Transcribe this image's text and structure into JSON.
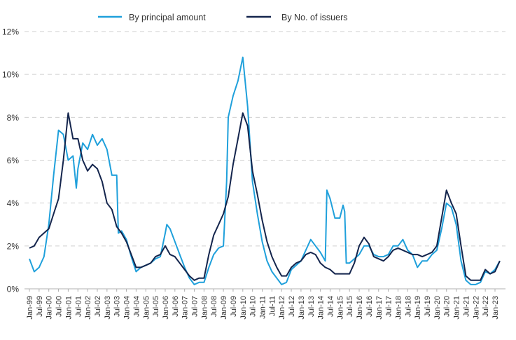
{
  "chart_data": {
    "type": "line",
    "title": "",
    "xlabel": "",
    "ylabel": "",
    "ylim": [
      0,
      12
    ],
    "y_ticks": [
      "0%",
      "2%",
      "4%",
      "6%",
      "8%",
      "10%",
      "12%"
    ],
    "x_ticks": [
      "Jan-99",
      "Jul-99",
      "Jan-00",
      "Jul-00",
      "Jan-01",
      "Jul-01",
      "Jan-02",
      "Jul-02",
      "Jan-03",
      "Jul-03",
      "Jan-04",
      "Jul-04",
      "Jan-05",
      "Jul-05",
      "Jan-06",
      "Jul-06",
      "Jan-07",
      "Jul-07",
      "Jan-08",
      "Jul-08",
      "Jan-09",
      "Jul-09",
      "Jan-10",
      "Jul-10",
      "Jan-11",
      "Jul-11",
      "Jan-12",
      "Jul-12",
      "Jan-13",
      "Jul-13",
      "Jan-14",
      "Jul-14",
      "Jan-15",
      "Jul-15",
      "Jan-16",
      "Jul-16",
      "Jan-17",
      "Jul-17",
      "Jan-18",
      "Jul-18",
      "Jan-19",
      "Jul-19",
      "Jan-20",
      "Jul-20",
      "Jan-21",
      "Jul-21",
      "Jan-22",
      "Jul-22",
      "Jan-23"
    ],
    "grid": "horizontal dashed",
    "legend_position": "top-center",
    "series": [
      {
        "name": "By principal amount",
        "color": "#1fa0db",
        "points": [
          [
            "1999-01",
            1.4
          ],
          [
            "1999-04",
            0.8
          ],
          [
            "1999-07",
            1.0
          ],
          [
            "1999-10",
            1.5
          ],
          [
            "2000-01",
            3.0
          ],
          [
            "2000-04",
            5.3
          ],
          [
            "2000-07",
            7.4
          ],
          [
            "2000-10",
            7.2
          ],
          [
            "2001-01",
            6.0
          ],
          [
            "2001-04",
            6.2
          ],
          [
            "2001-06",
            4.7
          ],
          [
            "2001-07",
            5.6
          ],
          [
            "2001-10",
            6.8
          ],
          [
            "2002-01",
            6.5
          ],
          [
            "2002-04",
            7.2
          ],
          [
            "2002-07",
            6.7
          ],
          [
            "2002-10",
            7.0
          ],
          [
            "2003-01",
            6.5
          ],
          [
            "2003-04",
            5.3
          ],
          [
            "2003-07",
            5.3
          ],
          [
            "2003-08",
            2.6
          ],
          [
            "2003-10",
            2.7
          ],
          [
            "2004-01",
            2.3
          ],
          [
            "2004-04",
            1.5
          ],
          [
            "2004-07",
            0.8
          ],
          [
            "2004-10",
            1.0
          ],
          [
            "2005-01",
            1.1
          ],
          [
            "2005-04",
            1.2
          ],
          [
            "2005-07",
            1.4
          ],
          [
            "2005-10",
            1.5
          ],
          [
            "2006-01",
            2.6
          ],
          [
            "2006-02",
            3.0
          ],
          [
            "2006-04",
            2.8
          ],
          [
            "2006-07",
            2.2
          ],
          [
            "2006-10",
            1.6
          ],
          [
            "2007-01",
            1.0
          ],
          [
            "2007-04",
            0.5
          ],
          [
            "2007-07",
            0.2
          ],
          [
            "2007-10",
            0.3
          ],
          [
            "2008-01",
            0.3
          ],
          [
            "2008-04",
            1.0
          ],
          [
            "2008-07",
            1.6
          ],
          [
            "2008-10",
            1.9
          ],
          [
            "2009-01",
            2.0
          ],
          [
            "2009-03",
            5.0
          ],
          [
            "2009-04",
            8.0
          ],
          [
            "2009-07",
            9.0
          ],
          [
            "2009-10",
            9.7
          ],
          [
            "2010-01",
            10.8
          ],
          [
            "2010-04",
            8.5
          ],
          [
            "2010-07",
            5.0
          ],
          [
            "2010-10",
            3.5
          ],
          [
            "2011-01",
            2.2
          ],
          [
            "2011-04",
            1.3
          ],
          [
            "2011-07",
            0.8
          ],
          [
            "2011-10",
            0.5
          ],
          [
            "2012-01",
            0.2
          ],
          [
            "2012-04",
            0.3
          ],
          [
            "2012-07",
            0.9
          ],
          [
            "2012-10",
            1.1
          ],
          [
            "2013-01",
            1.3
          ],
          [
            "2013-04",
            1.8
          ],
          [
            "2013-07",
            2.3
          ],
          [
            "2013-10",
            2.0
          ],
          [
            "2014-01",
            1.7
          ],
          [
            "2014-04",
            1.3
          ],
          [
            "2014-05",
            4.6
          ],
          [
            "2014-07",
            4.2
          ],
          [
            "2014-10",
            3.3
          ],
          [
            "2015-01",
            3.3
          ],
          [
            "2015-03",
            3.9
          ],
          [
            "2015-04",
            3.6
          ],
          [
            "2015-05",
            1.2
          ],
          [
            "2015-07",
            1.2
          ],
          [
            "2015-10",
            1.4
          ],
          [
            "2016-01",
            1.6
          ],
          [
            "2016-04",
            2.0
          ],
          [
            "2016-07",
            2.0
          ],
          [
            "2016-10",
            1.6
          ],
          [
            "2017-01",
            1.5
          ],
          [
            "2017-04",
            1.5
          ],
          [
            "2017-07",
            1.6
          ],
          [
            "2017-10",
            2.0
          ],
          [
            "2018-01",
            2.0
          ],
          [
            "2018-04",
            2.3
          ],
          [
            "2018-07",
            1.8
          ],
          [
            "2018-10",
            1.6
          ],
          [
            "2019-01",
            1.0
          ],
          [
            "2019-04",
            1.3
          ],
          [
            "2019-07",
            1.3
          ],
          [
            "2019-10",
            1.6
          ],
          [
            "2020-01",
            1.8
          ],
          [
            "2020-04",
            2.8
          ],
          [
            "2020-07",
            4.0
          ],
          [
            "2020-10",
            3.8
          ],
          [
            "2021-01",
            3.0
          ],
          [
            "2021-04",
            1.3
          ],
          [
            "2021-07",
            0.4
          ],
          [
            "2021-10",
            0.2
          ],
          [
            "2022-01",
            0.2
          ],
          [
            "2022-04",
            0.3
          ],
          [
            "2022-07",
            0.8
          ],
          [
            "2022-10",
            0.7
          ],
          [
            "2023-01",
            0.9
          ],
          [
            "2023-04",
            1.3
          ]
        ]
      },
      {
        "name": "By No. of issuers",
        "color": "#14254d",
        "points": [
          [
            "1999-01",
            1.9
          ],
          [
            "1999-04",
            2.0
          ],
          [
            "1999-07",
            2.4
          ],
          [
            "1999-10",
            2.6
          ],
          [
            "2000-01",
            2.8
          ],
          [
            "2000-04",
            3.5
          ],
          [
            "2000-07",
            4.2
          ],
          [
            "2000-10",
            6.0
          ],
          [
            "2001-01",
            8.2
          ],
          [
            "2001-04",
            7.0
          ],
          [
            "2001-07",
            7.0
          ],
          [
            "2001-10",
            6.0
          ],
          [
            "2002-01",
            5.5
          ],
          [
            "2002-04",
            5.8
          ],
          [
            "2002-07",
            5.6
          ],
          [
            "2002-10",
            5.0
          ],
          [
            "2003-01",
            4.0
          ],
          [
            "2003-04",
            3.7
          ],
          [
            "2003-07",
            2.9
          ],
          [
            "2003-10",
            2.6
          ],
          [
            "2004-01",
            2.2
          ],
          [
            "2004-04",
            1.6
          ],
          [
            "2004-07",
            1.0
          ],
          [
            "2004-10",
            1.0
          ],
          [
            "2005-01",
            1.1
          ],
          [
            "2005-04",
            1.2
          ],
          [
            "2005-07",
            1.5
          ],
          [
            "2005-10",
            1.6
          ],
          [
            "2006-01",
            2.0
          ],
          [
            "2006-04",
            1.6
          ],
          [
            "2006-07",
            1.5
          ],
          [
            "2006-10",
            1.2
          ],
          [
            "2007-01",
            0.9
          ],
          [
            "2007-04",
            0.6
          ],
          [
            "2007-07",
            0.4
          ],
          [
            "2007-10",
            0.5
          ],
          [
            "2008-01",
            0.5
          ],
          [
            "2008-04",
            1.6
          ],
          [
            "2008-07",
            2.5
          ],
          [
            "2008-10",
            3.0
          ],
          [
            "2009-01",
            3.5
          ],
          [
            "2009-04",
            4.3
          ],
          [
            "2009-07",
            5.8
          ],
          [
            "2009-10",
            7.0
          ],
          [
            "2010-01",
            8.2
          ],
          [
            "2010-04",
            7.6
          ],
          [
            "2010-07",
            5.5
          ],
          [
            "2010-10",
            4.4
          ],
          [
            "2011-01",
            3.2
          ],
          [
            "2011-04",
            2.2
          ],
          [
            "2011-07",
            1.5
          ],
          [
            "2011-10",
            1.0
          ],
          [
            "2012-01",
            0.6
          ],
          [
            "2012-04",
            0.6
          ],
          [
            "2012-07",
            1.0
          ],
          [
            "2012-10",
            1.2
          ],
          [
            "2013-01",
            1.3
          ],
          [
            "2013-04",
            1.6
          ],
          [
            "2013-07",
            1.7
          ],
          [
            "2013-10",
            1.6
          ],
          [
            "2014-01",
            1.2
          ],
          [
            "2014-04",
            1.0
          ],
          [
            "2014-07",
            0.9
          ],
          [
            "2014-10",
            0.7
          ],
          [
            "2015-01",
            0.7
          ],
          [
            "2015-04",
            0.7
          ],
          [
            "2015-07",
            0.7
          ],
          [
            "2015-10",
            1.2
          ],
          [
            "2016-01",
            2.0
          ],
          [
            "2016-04",
            2.4
          ],
          [
            "2016-07",
            2.1
          ],
          [
            "2016-10",
            1.5
          ],
          [
            "2017-01",
            1.4
          ],
          [
            "2017-04",
            1.3
          ],
          [
            "2017-07",
            1.5
          ],
          [
            "2017-10",
            1.8
          ],
          [
            "2018-01",
            1.9
          ],
          [
            "2018-04",
            1.8
          ],
          [
            "2018-07",
            1.7
          ],
          [
            "2018-10",
            1.6
          ],
          [
            "2019-01",
            1.6
          ],
          [
            "2019-04",
            1.5
          ],
          [
            "2019-07",
            1.6
          ],
          [
            "2019-10",
            1.7
          ],
          [
            "2020-01",
            2.0
          ],
          [
            "2020-04",
            3.3
          ],
          [
            "2020-07",
            4.6
          ],
          [
            "2020-10",
            4.0
          ],
          [
            "2021-01",
            3.5
          ],
          [
            "2021-04",
            2.0
          ],
          [
            "2021-07",
            0.6
          ],
          [
            "2021-10",
            0.4
          ],
          [
            "2022-01",
            0.4
          ],
          [
            "2022-04",
            0.4
          ],
          [
            "2022-07",
            0.9
          ],
          [
            "2022-10",
            0.7
          ],
          [
            "2023-01",
            0.8
          ],
          [
            "2023-04",
            1.3
          ]
        ]
      }
    ]
  }
}
